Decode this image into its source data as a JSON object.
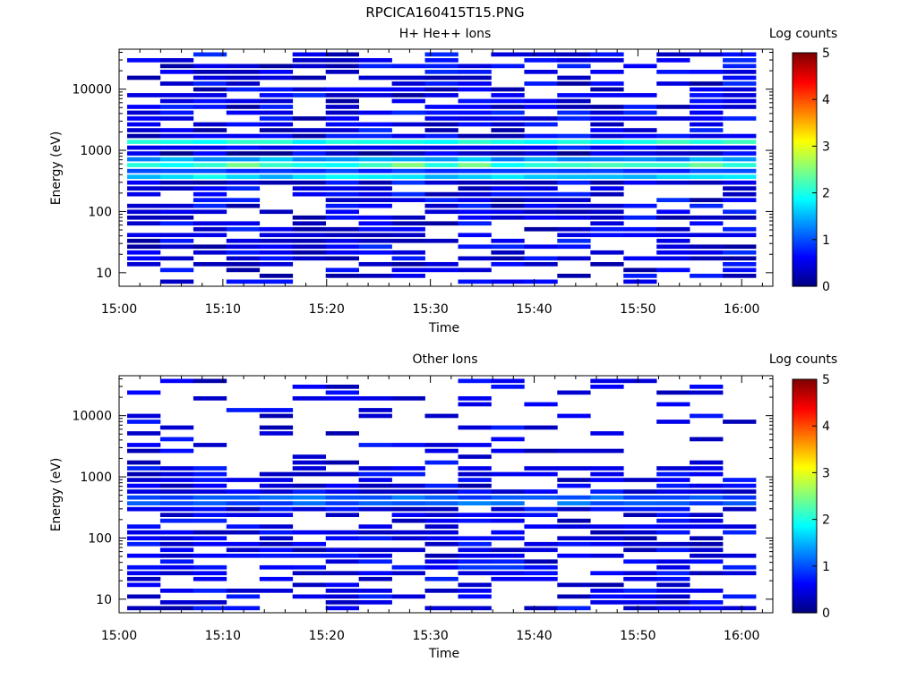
{
  "figure": {
    "title": "RPCICA160415T15.PNG"
  },
  "colorbar": {
    "label": "Log counts",
    "ticks": [
      "0",
      "1",
      "2",
      "3",
      "4",
      "5"
    ],
    "range": [
      0,
      5
    ],
    "colormap": [
      "#00008f",
      "#0000ff",
      "#0080ff",
      "#00ffff",
      "#80ff80",
      "#ffff00",
      "#ff8000",
      "#ff0000",
      "#800000"
    ]
  },
  "chart_data": [
    {
      "type": "heatmap",
      "title": "H+ He++ Ions",
      "xlabel": "Time",
      "ylabel": "Energy (eV)",
      "xticks": [
        "15:00",
        "15:10",
        "15:20",
        "15:30",
        "15:40",
        "15:50",
        "16:00"
      ],
      "xlim_minutes": [
        0,
        63
      ],
      "yticks": [
        "10",
        "100",
        "1000",
        "10000"
      ],
      "ylim": [
        6,
        45000
      ],
      "yscale": "log",
      "time_bins": 19,
      "energy_bins": 40,
      "features": [
        {
          "description_energy_eV": 1300,
          "peak_log_counts": 2.2
        },
        {
          "description_energy_eV": 600,
          "peak_log_counts": 3.0
        },
        {
          "description_energy_eV": 380,
          "peak_log_counts": 2.3
        }
      ]
    },
    {
      "type": "heatmap",
      "title": "Other Ions",
      "xlabel": "Time",
      "ylabel": "Energy (eV)",
      "xticks": [
        "15:00",
        "15:10",
        "15:20",
        "15:30",
        "15:40",
        "15:50",
        "16:00"
      ],
      "xlim_minutes": [
        0,
        63
      ],
      "yticks": [
        "10",
        "100",
        "1000",
        "10000"
      ],
      "ylim": [
        6,
        45000
      ],
      "yscale": "log",
      "time_bins": 19,
      "energy_bins": 40,
      "features": [
        {
          "description_energy_eV": 400,
          "peak_log_counts": 1.4
        },
        {
          "description_energy_eV": 30,
          "peak_log_counts": 1.0
        }
      ]
    }
  ]
}
